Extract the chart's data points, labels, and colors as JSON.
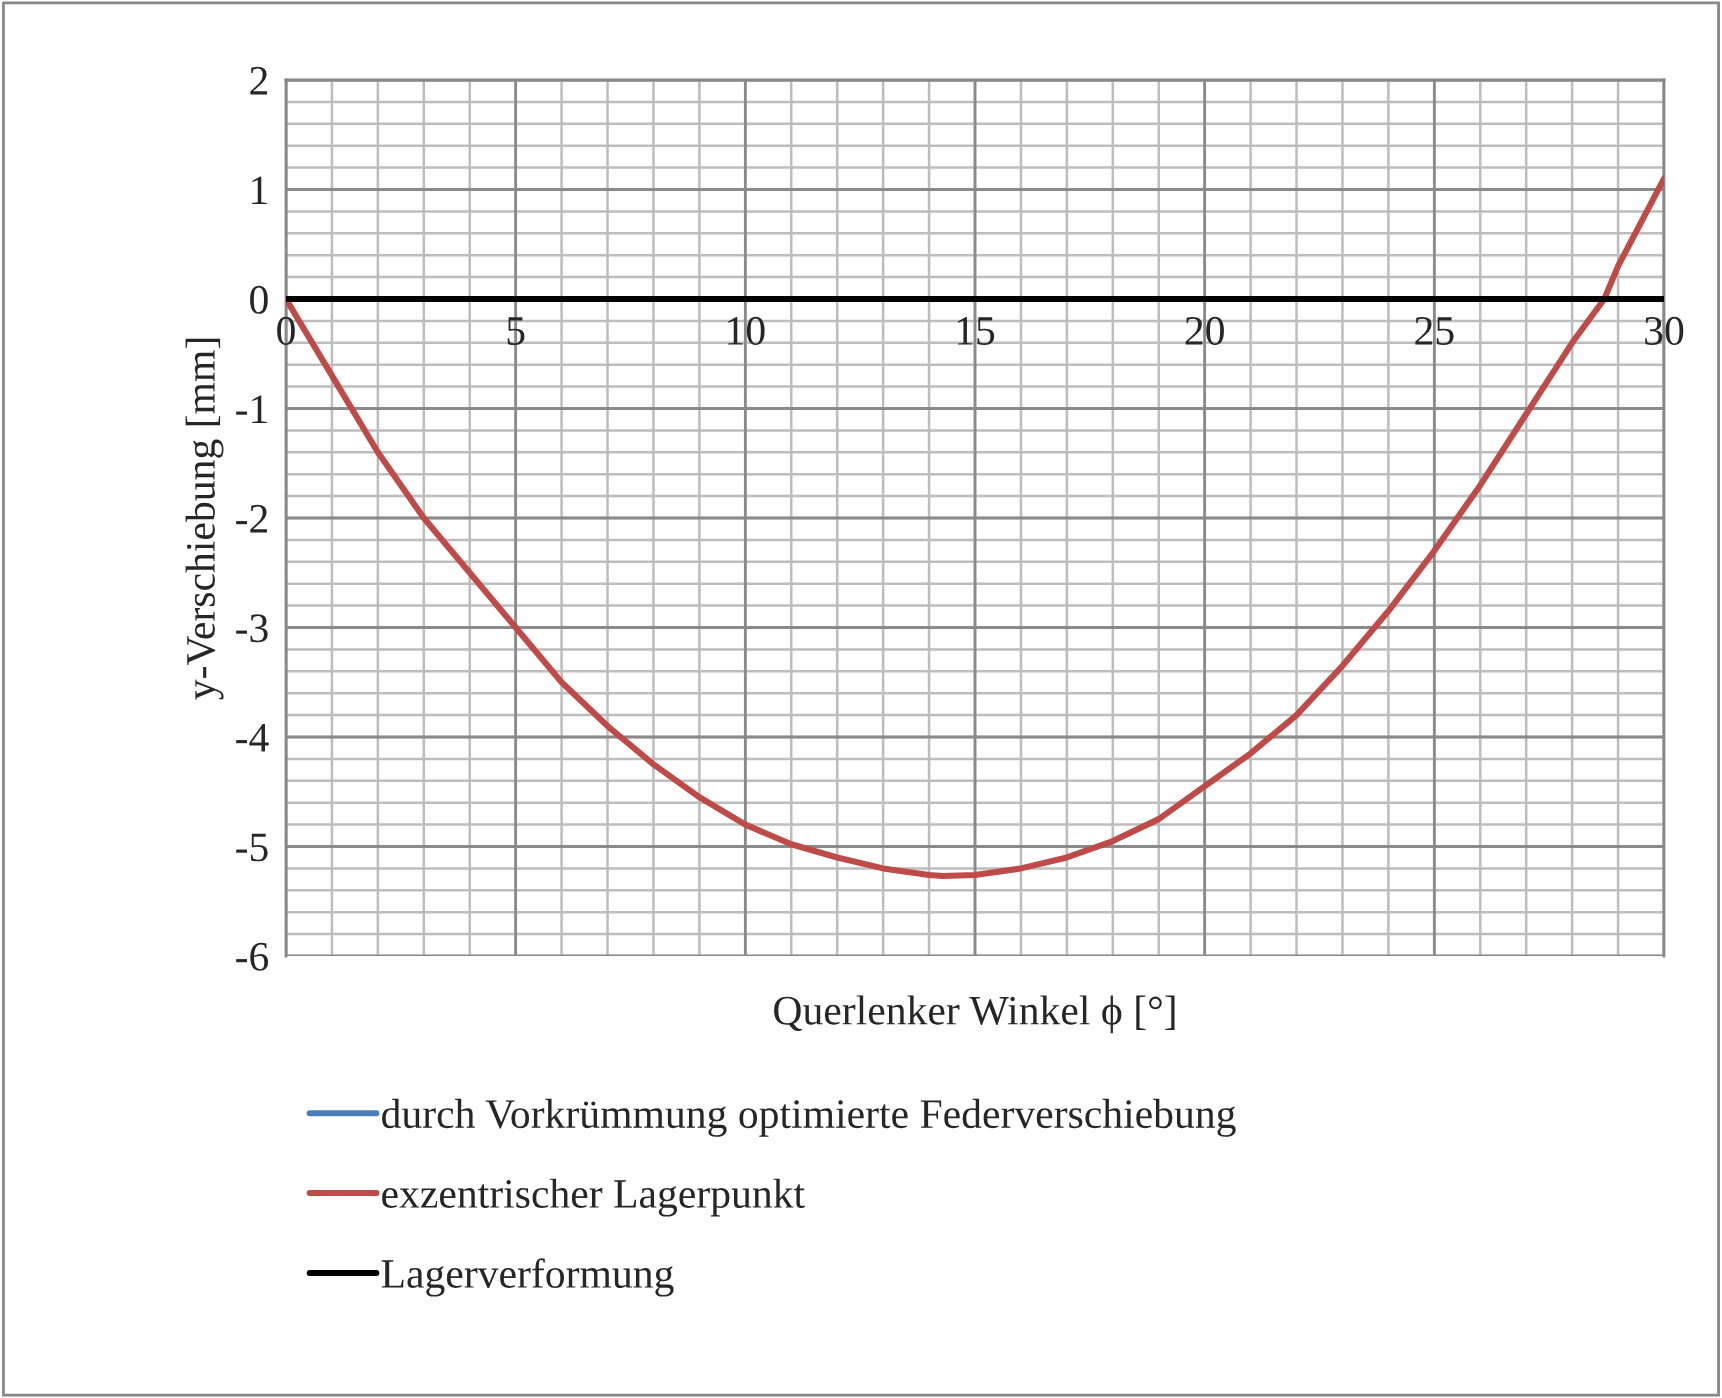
{
  "chart_data": {
    "type": "line",
    "xlabel": "Querlenker Winkel ϕ [°]",
    "ylabel": "y-Verschiebung [mm]",
    "xlim": [
      0,
      30
    ],
    "xticks": [
      0,
      5,
      10,
      15,
      20,
      25,
      30
    ],
    "ylim": [
      -6,
      2
    ],
    "yticks": [
      -6,
      -5,
      -4,
      -3,
      -2,
      -1,
      0,
      1,
      2
    ],
    "grid": true,
    "legend": "bottom",
    "marker": "none",
    "line_style": "solid",
    "series": [
      {
        "name": "durch Vorkrümmung optimierte Federverschiebung",
        "color": "#4a7ebb"
      },
      {
        "name": "exzentrischer Lagerpunkt",
        "color": "#be4b48",
        "x": [
          0,
          1,
          2,
          3,
          4,
          5,
          6,
          7,
          8,
          9,
          10,
          11,
          12,
          13,
          14,
          14.3,
          15,
          16,
          17,
          18,
          19,
          20,
          21,
          22,
          23,
          24,
          25,
          26,
          27,
          28,
          28.7,
          29,
          30
        ],
        "values": [
          0,
          -0.7,
          -1.4,
          -2.0,
          -2.5,
          -3.0,
          -3.5,
          -3.9,
          -4.25,
          -4.55,
          -4.8,
          -4.98,
          -5.1,
          -5.2,
          -5.26,
          -5.27,
          -5.26,
          -5.2,
          -5.1,
          -4.95,
          -4.75,
          -4.45,
          -4.15,
          -3.8,
          -3.35,
          -2.85,
          -2.3,
          -1.7,
          -1.05,
          -0.4,
          0,
          0.3,
          1.1
        ]
      },
      {
        "name": "Lagerverformung",
        "color": "#000000",
        "x": [
          0,
          30
        ],
        "values": [
          0,
          0
        ]
      }
    ]
  }
}
